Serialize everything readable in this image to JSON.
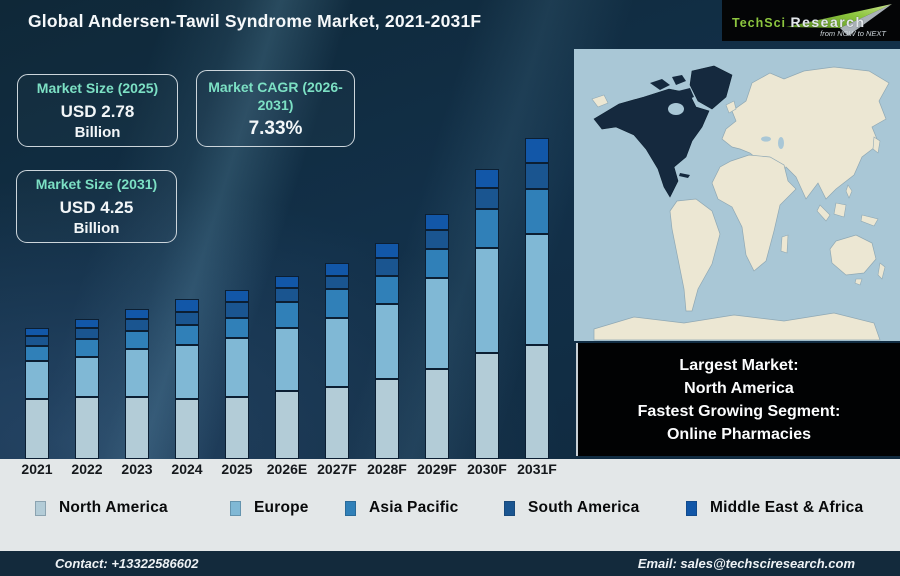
{
  "header": {
    "title": "Global Andersen-Tawil Syndrome Market, 2021-2031F",
    "logo": {
      "brand_primary": "TechSci",
      "brand_secondary": "Research",
      "tagline": "from NOW to NEXT"
    }
  },
  "info_boxes": [
    {
      "label": "Market Size (2025)",
      "value": "USD 2.78",
      "unit": "Billion"
    },
    {
      "label": "Market CAGR (2026-2031)",
      "value": "7.33%",
      "unit": ""
    },
    {
      "label": "Market Size (2031)",
      "value": "USD 4.25",
      "unit": "Billion"
    }
  ],
  "chart_data": {
    "type": "bar",
    "stacked": true,
    "title": "Global Andersen-Tawil Syndrome Market, 2021-2031F",
    "categories": [
      "2021",
      "2022",
      "2023",
      "2024",
      "2025",
      "2026E",
      "2027F",
      "2028F",
      "2029F",
      "2030F",
      "2031F"
    ],
    "series": [
      {
        "name": "North America",
        "color": "#b3ccd7",
        "values": [
          60,
          62,
          62,
          60,
          62,
          68,
          72,
          80,
          90,
          106,
          114
        ]
      },
      {
        "name": "Europe",
        "color": "#80b8d5",
        "values": [
          38,
          40,
          48,
          54,
          59,
          63,
          69,
          75,
          91,
          105,
          111
        ]
      },
      {
        "name": "Asia Pacific",
        "color": "#3080b8",
        "values": [
          15,
          18,
          18,
          20,
          20,
          26,
          29,
          28,
          29,
          39,
          45
        ]
      },
      {
        "name": "South America",
        "color": "#1a5590",
        "values": [
          10,
          11,
          12,
          13,
          16,
          14,
          13,
          18,
          19,
          21,
          26
        ]
      },
      {
        "name": "Middle East & Africa",
        "color": "#1257a8",
        "values": [
          8,
          9,
          10,
          13,
          12,
          12,
          13,
          15,
          16,
          19,
          25
        ]
      }
    ],
    "value_note": "No y-axis shown; series values are relative stacked-bar heights read from the chart. Labeled anchors: total market USD 2.78 Billion in 2025, USD 4.25 Billion in 2031, CAGR 7.33% (2026-2031).",
    "annotations": {
      "market_size_2025": "USD 2.78 Billion",
      "market_size_2031": "USD 4.25 Billion",
      "cagr_2026_2031": "7.33%"
    },
    "legend_position": "bottom",
    "grid": false
  },
  "highlight_box": {
    "lines": [
      "Largest Market:",
      "North America",
      "Fastest Growing Segment:",
      "Online Pharmacies"
    ]
  },
  "footer": {
    "contact": "Contact: +13322586602",
    "email": "Email: sales@techsciresearch.com"
  },
  "colors": {
    "background_dark": "#112c42",
    "accent_teal": "#7ce0c4",
    "map_highlight": "#15293e",
    "map_land": "#ece7d3",
    "map_ocean": "#a9c7d6",
    "footer_bg": "#132a3c",
    "logo_green": "#8dc63f"
  }
}
